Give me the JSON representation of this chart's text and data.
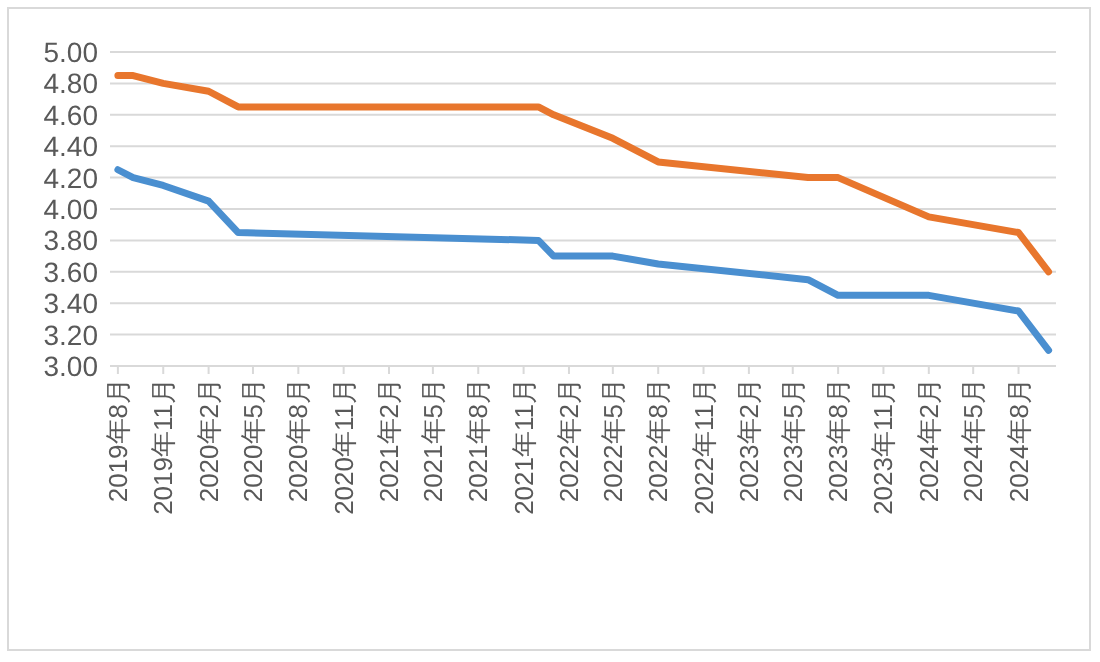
{
  "chart_data": {
    "type": "line",
    "x": [
      "2019-08",
      "2019-09",
      "2019-11",
      "2020-02",
      "2020-04",
      "2021-12",
      "2022-01",
      "2022-05",
      "2022-08",
      "2023-06",
      "2023-08",
      "2024-02",
      "2024-08",
      "2024-10"
    ],
    "series": [
      {
        "color": "#4a8fd0",
        "values": [
          4.25,
          4.2,
          4.15,
          4.05,
          3.85,
          3.8,
          3.7,
          3.7,
          3.65,
          3.55,
          3.45,
          3.45,
          3.35,
          3.1
        ]
      },
      {
        "color": "#e8762d",
        "values": [
          4.85,
          4.85,
          4.8,
          4.75,
          4.65,
          4.65,
          4.6,
          4.45,
          4.3,
          4.2,
          4.2,
          3.95,
          3.85,
          3.6
        ]
      }
    ],
    "xlim": [
      "2019-07-16",
      "2024-10-16"
    ],
    "xticks": [
      {
        "value": "2019-08",
        "label": "2019年8月"
      },
      {
        "value": "2019-11",
        "label": "2019年11月"
      },
      {
        "value": "2020-02",
        "label": "2020年2月"
      },
      {
        "value": "2020-05",
        "label": "2020年5月"
      },
      {
        "value": "2020-08",
        "label": "2020年8月"
      },
      {
        "value": "2020-11",
        "label": "2020年11月"
      },
      {
        "value": "2021-02",
        "label": "2021年2月"
      },
      {
        "value": "2021-05",
        "label": "2021年5月"
      },
      {
        "value": "2021-08",
        "label": "2021年8月"
      },
      {
        "value": "2021-11",
        "label": "2021年11月"
      },
      {
        "value": "2022-02",
        "label": "2022年2月"
      },
      {
        "value": "2022-05",
        "label": "2022年5月"
      },
      {
        "value": "2022-08",
        "label": "2022年8月"
      },
      {
        "value": "2022-11",
        "label": "2022年11月"
      },
      {
        "value": "2023-02",
        "label": "2023年2月"
      },
      {
        "value": "2023-05",
        "label": "2023年5月"
      },
      {
        "value": "2023-08",
        "label": "2023年8月"
      },
      {
        "value": "2023-11",
        "label": "2023年11月"
      },
      {
        "value": "2024-02",
        "label": "2024年2月"
      },
      {
        "value": "2024-05",
        "label": "2024年5月"
      },
      {
        "value": "2024-08",
        "label": "2024年8月"
      }
    ],
    "ylim": [
      3,
      5
    ],
    "yticks": [
      {
        "value": 3,
        "label": "3.00"
      },
      {
        "value": 3.2,
        "label": "3.20"
      },
      {
        "value": 3.4,
        "label": "3.40"
      },
      {
        "value": 3.6,
        "label": "3.60"
      },
      {
        "value": 3.8,
        "label": "3.80"
      },
      {
        "value": 4,
        "label": "4.00"
      },
      {
        "value": 4.2,
        "label": "4.20"
      },
      {
        "value": 4.4,
        "label": "4.40"
      },
      {
        "value": 4.6,
        "label": "4.60"
      },
      {
        "value": 4.8,
        "label": "4.80"
      },
      {
        "value": 5,
        "label": "5.00"
      }
    ],
    "grid": "y",
    "line_style": "solid"
  }
}
